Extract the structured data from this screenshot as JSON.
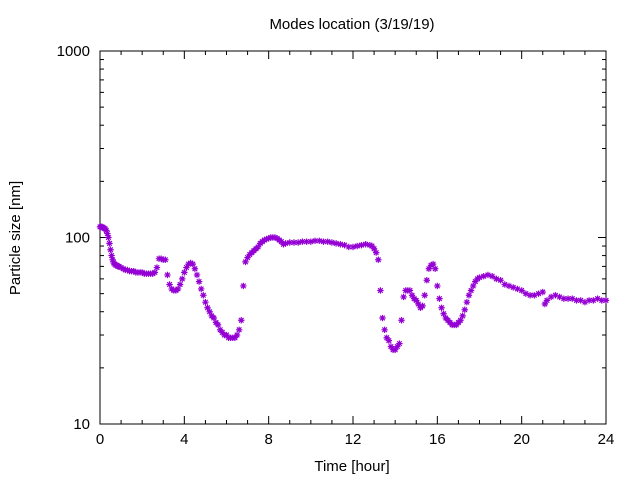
{
  "chart_data": {
    "type": "scatter",
    "title": "Modes location (3/19/19)",
    "xlabel": "Time [hour]",
    "ylabel": "Particle size [nm]",
    "xlim": [
      0,
      24
    ],
    "ylim": [
      10,
      1000
    ],
    "yscale": "log",
    "grid": false,
    "marker": "asterisk",
    "color": "#9400d3",
    "xticks": [
      0,
      4,
      8,
      12,
      16,
      20,
      24
    ],
    "xtick_labels": [
      "0",
      "4",
      "8",
      "12",
      "16",
      "20",
      "24"
    ],
    "yticks": [
      10,
      100,
      1000
    ],
    "ytick_labels": [
      "10",
      "100",
      "1000"
    ],
    "series": [
      {
        "points": [
          [
            0.0,
            114
          ],
          [
            0.05,
            114
          ],
          [
            0.1,
            114
          ],
          [
            0.15,
            113
          ],
          [
            0.2,
            112
          ],
          [
            0.25,
            111
          ],
          [
            0.3,
            109
          ],
          [
            0.35,
            105
          ],
          [
            0.4,
            100
          ],
          [
            0.45,
            93
          ],
          [
            0.5,
            86
          ],
          [
            0.55,
            80
          ],
          [
            0.6,
            76
          ],
          [
            0.65,
            73
          ],
          [
            0.7,
            72
          ],
          [
            0.75,
            71
          ],
          [
            0.8,
            71
          ],
          [
            0.85,
            70
          ],
          [
            0.9,
            70
          ],
          [
            1.0,
            69
          ],
          [
            1.1,
            68
          ],
          [
            1.2,
            67
          ],
          [
            1.3,
            67
          ],
          [
            1.4,
            66
          ],
          [
            1.5,
            66
          ],
          [
            1.6,
            66
          ],
          [
            1.7,
            65
          ],
          [
            1.8,
            65
          ],
          [
            1.9,
            65
          ],
          [
            2.0,
            65
          ],
          [
            2.1,
            64
          ],
          [
            2.2,
            64
          ],
          [
            2.3,
            64
          ],
          [
            2.4,
            64
          ],
          [
            2.5,
            64
          ],
          [
            2.6,
            65
          ],
          [
            2.7,
            69
          ],
          [
            2.8,
            77
          ],
          [
            2.9,
            77
          ],
          [
            3.0,
            76
          ],
          [
            3.1,
            76
          ],
          [
            3.2,
            63
          ],
          [
            3.3,
            56
          ],
          [
            3.4,
            53
          ],
          [
            3.5,
            52
          ],
          [
            3.6,
            52
          ],
          [
            3.7,
            53
          ],
          [
            3.8,
            56
          ],
          [
            3.9,
            60
          ],
          [
            4.0,
            65
          ],
          [
            4.1,
            69
          ],
          [
            4.2,
            72
          ],
          [
            4.3,
            73
          ],
          [
            4.4,
            72
          ],
          [
            4.5,
            68
          ],
          [
            4.6,
            63
          ],
          [
            4.7,
            58
          ],
          [
            4.8,
            53
          ],
          [
            4.9,
            49
          ],
          [
            5.0,
            45
          ],
          [
            5.1,
            42
          ],
          [
            5.2,
            40
          ],
          [
            5.3,
            38
          ],
          [
            5.4,
            37
          ],
          [
            5.5,
            35
          ],
          [
            5.6,
            34
          ],
          [
            5.7,
            32
          ],
          [
            5.8,
            31
          ],
          [
            5.9,
            30
          ],
          [
            6.0,
            30
          ],
          [
            6.1,
            29
          ],
          [
            6.2,
            29
          ],
          [
            6.3,
            29
          ],
          [
            6.4,
            29
          ],
          [
            6.5,
            30
          ],
          [
            6.6,
            32
          ],
          [
            6.7,
            36
          ],
          [
            6.8,
            55
          ],
          [
            6.9,
            74
          ],
          [
            7.0,
            78
          ],
          [
            7.1,
            81
          ],
          [
            7.2,
            83
          ],
          [
            7.3,
            85
          ],
          [
            7.4,
            87
          ],
          [
            7.5,
            89
          ],
          [
            7.6,
            93
          ],
          [
            7.7,
            95
          ],
          [
            7.8,
            97
          ],
          [
            7.9,
            98
          ],
          [
            8.0,
            99
          ],
          [
            8.1,
            100
          ],
          [
            8.2,
            100
          ],
          [
            8.3,
            100
          ],
          [
            8.4,
            99
          ],
          [
            8.5,
            97
          ],
          [
            8.6,
            95
          ],
          [
            8.7,
            92
          ],
          [
            8.8,
            93
          ],
          [
            9.0,
            94
          ],
          [
            9.2,
            94
          ],
          [
            9.4,
            94
          ],
          [
            9.6,
            95
          ],
          [
            9.8,
            95
          ],
          [
            10.0,
            95
          ],
          [
            10.2,
            96
          ],
          [
            10.4,
            96
          ],
          [
            10.6,
            95
          ],
          [
            10.8,
            95
          ],
          [
            11.0,
            94
          ],
          [
            11.2,
            93
          ],
          [
            11.4,
            92
          ],
          [
            11.6,
            91
          ],
          [
            11.8,
            89
          ],
          [
            12.0,
            89
          ],
          [
            12.2,
            90
          ],
          [
            12.4,
            91
          ],
          [
            12.6,
            92
          ],
          [
            12.8,
            91
          ],
          [
            12.9,
            90
          ],
          [
            13.0,
            87
          ],
          [
            13.1,
            83
          ],
          [
            13.2,
            76
          ],
          [
            13.3,
            52
          ],
          [
            13.4,
            37
          ],
          [
            13.5,
            32
          ],
          [
            13.6,
            29
          ],
          [
            13.7,
            28
          ],
          [
            13.8,
            26
          ],
          [
            13.9,
            25
          ],
          [
            14.0,
            25
          ],
          [
            14.1,
            26
          ],
          [
            14.2,
            27
          ],
          [
            14.3,
            36
          ],
          [
            14.4,
            48
          ],
          [
            14.5,
            52
          ],
          [
            14.6,
            52
          ],
          [
            14.7,
            52
          ],
          [
            14.8,
            49
          ],
          [
            14.9,
            47
          ],
          [
            15.0,
            46
          ],
          [
            15.1,
            44
          ],
          [
            15.2,
            42
          ],
          [
            15.3,
            43
          ],
          [
            15.4,
            49
          ],
          [
            15.5,
            59
          ],
          [
            15.6,
            68
          ],
          [
            15.7,
            71
          ],
          [
            15.8,
            72
          ],
          [
            15.9,
            68
          ],
          [
            16.0,
            55
          ],
          [
            16.1,
            47
          ],
          [
            16.2,
            42
          ],
          [
            16.3,
            39
          ],
          [
            16.4,
            37
          ],
          [
            16.5,
            36
          ],
          [
            16.6,
            35
          ],
          [
            16.7,
            34
          ],
          [
            16.8,
            34
          ],
          [
            16.9,
            34
          ],
          [
            17.0,
            35
          ],
          [
            17.1,
            36
          ],
          [
            17.2,
            38
          ],
          [
            17.3,
            41
          ],
          [
            17.4,
            45
          ],
          [
            17.5,
            49
          ],
          [
            17.6,
            52
          ],
          [
            17.7,
            55
          ],
          [
            17.8,
            58
          ],
          [
            17.9,
            60
          ],
          [
            18.0,
            61
          ],
          [
            18.2,
            62
          ],
          [
            18.4,
            63
          ],
          [
            18.6,
            62
          ],
          [
            18.8,
            60
          ],
          [
            19.0,
            59
          ],
          [
            19.2,
            56
          ],
          [
            19.4,
            55
          ],
          [
            19.6,
            54
          ],
          [
            19.8,
            53
          ],
          [
            20.0,
            52
          ],
          [
            20.2,
            50
          ],
          [
            20.4,
            49
          ],
          [
            20.6,
            49
          ],
          [
            20.8,
            50
          ],
          [
            21.0,
            51
          ],
          [
            21.1,
            44
          ],
          [
            21.2,
            46
          ],
          [
            21.4,
            48
          ],
          [
            21.6,
            49
          ],
          [
            21.8,
            48
          ],
          [
            22.0,
            47
          ],
          [
            22.2,
            47
          ],
          [
            22.4,
            47
          ],
          [
            22.6,
            46
          ],
          [
            22.8,
            46
          ],
          [
            23.0,
            45
          ],
          [
            23.2,
            46
          ],
          [
            23.4,
            46
          ],
          [
            23.6,
            47
          ],
          [
            23.8,
            46
          ],
          [
            24.0,
            46
          ]
        ]
      }
    ]
  }
}
